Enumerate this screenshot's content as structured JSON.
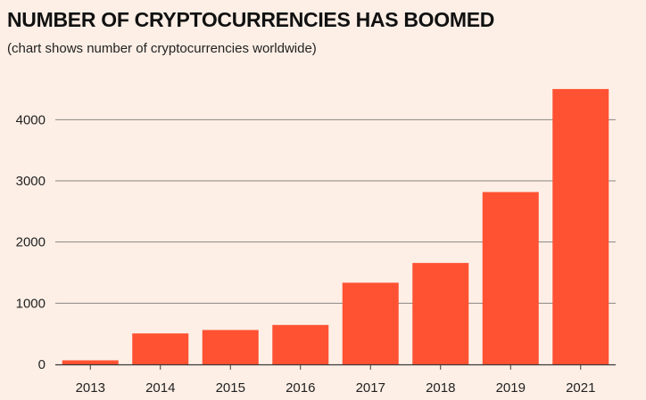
{
  "chart_data": {
    "type": "bar",
    "title": "NUMBER OF CRYPTOCURRENCIES HAS BOOMED",
    "subtitle": "(chart shows number of cryptocurrencies worldwide)",
    "xlabel": "",
    "ylabel": "",
    "categories": [
      "2013",
      "2014",
      "2015",
      "2016",
      "2017",
      "2018",
      "2019",
      "2021"
    ],
    "values": [
      66,
      506,
      562,
      644,
      1335,
      1658,
      2817,
      4501
    ],
    "ylim": [
      0,
      4500
    ],
    "yticks": [
      0,
      1000,
      2000,
      3000,
      4000
    ],
    "grid": true,
    "bar_color": "#ff5232",
    "grid_color": "#8c8681",
    "background": "#fdefe6"
  }
}
